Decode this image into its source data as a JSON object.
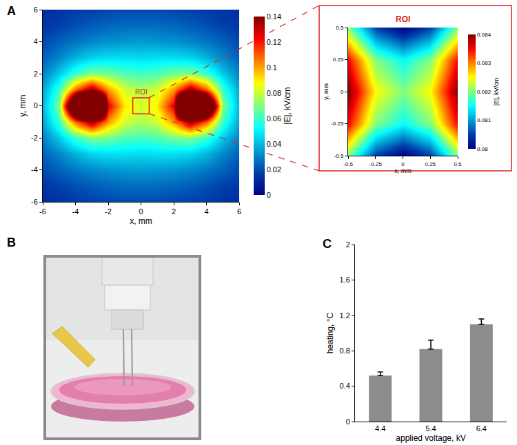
{
  "chart_data": [
    {
      "type": "heatmap",
      "panel": "A",
      "x": [
        -6,
        -5,
        -4,
        -3,
        -2,
        -1,
        0,
        1,
        2,
        3,
        4,
        5,
        6
      ],
      "y": [
        -6,
        -5,
        -4,
        -3,
        -2,
        -1,
        0,
        1,
        2,
        3,
        4,
        5,
        6
      ],
      "z": [
        [
          0.013,
          0.015,
          0.017,
          0.018,
          0.019,
          0.02,
          0.02,
          0.02,
          0.019,
          0.018,
          0.017,
          0.015,
          0.013
        ],
        [
          0.016,
          0.018,
          0.021,
          0.023,
          0.025,
          0.026,
          0.026,
          0.026,
          0.025,
          0.023,
          0.021,
          0.018,
          0.016
        ],
        [
          0.02,
          0.024,
          0.028,
          0.031,
          0.033,
          0.034,
          0.035,
          0.034,
          0.033,
          0.031,
          0.028,
          0.024,
          0.02
        ],
        [
          0.024,
          0.031,
          0.039,
          0.045,
          0.047,
          0.047,
          0.046,
          0.047,
          0.047,
          0.045,
          0.039,
          0.031,
          0.024
        ],
        [
          0.03,
          0.043,
          0.06,
          0.07,
          0.068,
          0.063,
          0.061,
          0.063,
          0.068,
          0.07,
          0.06,
          0.043,
          0.03
        ],
        [
          0.036,
          0.06,
          0.109,
          0.136,
          0.101,
          0.081,
          0.076,
          0.081,
          0.101,
          0.136,
          0.109,
          0.06,
          0.036
        ],
        [
          0.039,
          0.071,
          0.214,
          0.372,
          0.126,
          0.09,
          0.082,
          0.09,
          0.126,
          0.372,
          0.214,
          0.071,
          0.039
        ],
        [
          0.036,
          0.06,
          0.109,
          0.136,
          0.101,
          0.081,
          0.076,
          0.081,
          0.101,
          0.136,
          0.109,
          0.06,
          0.036
        ],
        [
          0.03,
          0.043,
          0.06,
          0.07,
          0.068,
          0.063,
          0.061,
          0.063,
          0.068,
          0.07,
          0.06,
          0.043,
          0.03
        ],
        [
          0.024,
          0.031,
          0.039,
          0.045,
          0.047,
          0.047,
          0.046,
          0.047,
          0.047,
          0.045,
          0.039,
          0.031,
          0.024
        ],
        [
          0.02,
          0.024,
          0.028,
          0.031,
          0.033,
          0.034,
          0.035,
          0.034,
          0.033,
          0.031,
          0.028,
          0.024,
          0.02
        ],
        [
          0.016,
          0.018,
          0.021,
          0.023,
          0.025,
          0.026,
          0.026,
          0.026,
          0.025,
          0.023,
          0.021,
          0.018,
          0.016
        ],
        [
          0.013,
          0.015,
          0.017,
          0.018,
          0.019,
          0.02,
          0.02,
          0.02,
          0.019,
          0.018,
          0.017,
          0.015,
          0.013
        ]
      ],
      "xlim": [
        -6,
        6
      ],
      "ylim": [
        -6,
        6
      ],
      "xticks": [
        -6,
        -4,
        -2,
        0,
        2,
        4,
        6
      ],
      "yticks": [
        -6,
        -4,
        -2,
        0,
        2,
        4,
        6
      ],
      "x_label": "x, mm",
      "y_label": "y, mm",
      "colorbar": {
        "title": "|E|, kV/cm",
        "range": [
          0,
          0.14
        ],
        "ticks": [
          0,
          0.02,
          0.04,
          0.06,
          0.08,
          0.1,
          0.12,
          0.14
        ]
      },
      "annotations": [
        "ROI"
      ]
    },
    {
      "type": "heatmap",
      "title": "ROI",
      "x": [
        -0.5,
        -0.25,
        0,
        0.25,
        0.5
      ],
      "y": [
        -0.5,
        -0.25,
        0,
        0.25,
        0.5
      ],
      "z": [
        [
          0.082,
          0.0805,
          0.08,
          0.0805,
          0.082
        ],
        [
          0.0835,
          0.082,
          0.0815,
          0.082,
          0.0835
        ],
        [
          0.084,
          0.0825,
          0.082,
          0.0825,
          0.084
        ],
        [
          0.0835,
          0.082,
          0.0815,
          0.082,
          0.0835
        ],
        [
          0.082,
          0.0805,
          0.08,
          0.0805,
          0.082
        ]
      ],
      "xlim": [
        -0.5,
        0.5
      ],
      "ylim": [
        -0.5,
        0.5
      ],
      "xticks": [
        -0.5,
        -0.25,
        0,
        0.25,
        0.5
      ],
      "yticks": [
        -0.5,
        -0.25,
        0,
        0.25,
        0.5
      ],
      "x_label": "x, mm",
      "y_label": "y, mm",
      "colorbar": {
        "title": "|E|, kV/cm",
        "range": [
          0.08,
          0.084
        ],
        "ticks": [
          0.08,
          0.081,
          0.082,
          0.083,
          0.084
        ]
      }
    },
    {
      "type": "bar",
      "panel": "C",
      "categories": [
        "4.4",
        "5.4",
        "6.4"
      ],
      "values": [
        0.52,
        0.82,
        1.1
      ],
      "error": [
        0.04,
        0.1,
        0.06
      ],
      "color": "#8c8c8c",
      "ylim": [
        0,
        2
      ],
      "yticks": [
        0,
        0.4,
        0.8,
        1.2,
        1.6,
        2
      ],
      "x_label": "applied voltage, kV",
      "y_label": "heating, °C"
    }
  ],
  "photo": {
    "panel": "B"
  }
}
